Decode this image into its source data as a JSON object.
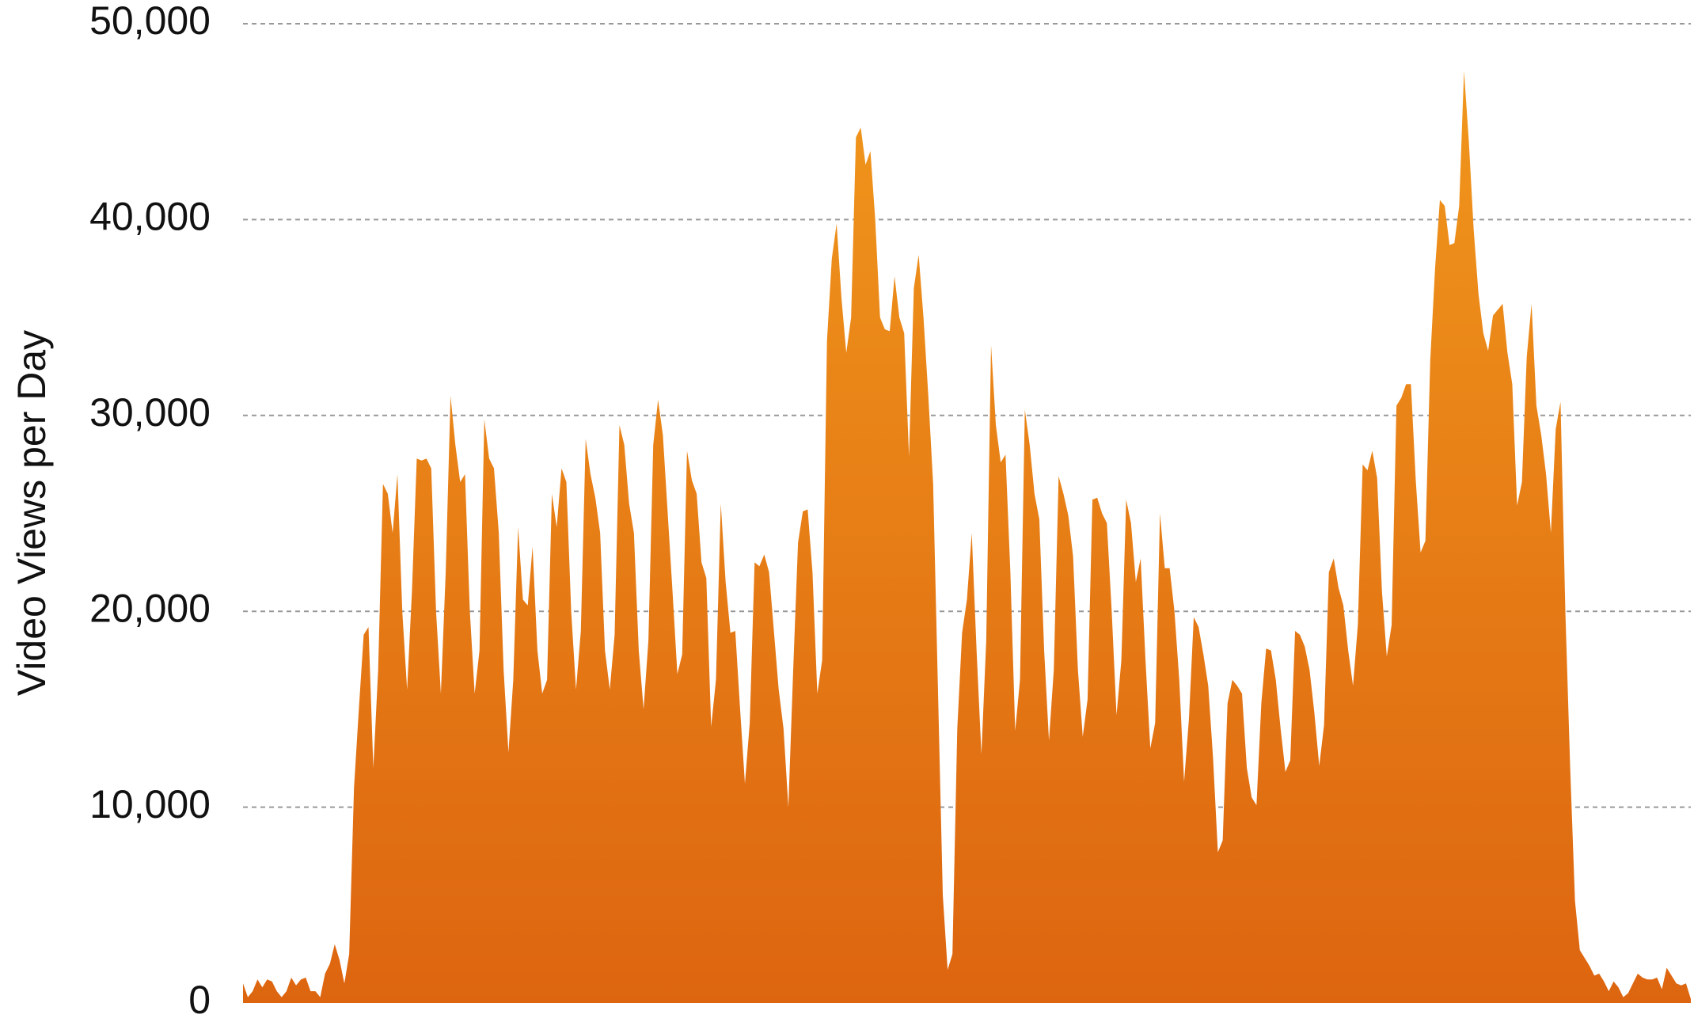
{
  "chart_data": {
    "type": "area",
    "y_label": "Video Views per Day",
    "ylim": [
      0,
      50000
    ],
    "yticks": [
      0,
      {
        "value": 10000,
        "label": "10,000"
      },
      {
        "value": 20000,
        "label": "20,000"
      },
      {
        "value": 30000,
        "label": "30,000"
      },
      {
        "value": 40000,
        "label": "40,000"
      },
      {
        "value": 50000,
        "label": "50,000"
      }
    ],
    "grid": true,
    "colors": [
      "#f0961c",
      "#dd6510"
    ],
    "values": [
      1000,
      300,
      600,
      1200,
      800,
      1200,
      1100,
      600,
      300,
      600,
      1300,
      900,
      1200,
      1300,
      600,
      600,
      300,
      1500,
      2000,
      3000,
      2200,
      1000,
      2500,
      11000,
      15000,
      18800,
      19200,
      12000,
      17000,
      26500,
      26000,
      24000,
      27000,
      20000,
      16000,
      21000,
      27800,
      27700,
      27800,
      27300,
      20000,
      15800,
      22000,
      31000,
      28500,
      26600,
      27000,
      20000,
      15800,
      18000,
      29800,
      27800,
      27300,
      24000,
      17000,
      12800,
      16500,
      24300,
      20600,
      20300,
      23300,
      18000,
      15800,
      16500,
      26000,
      24300,
      27300,
      26600,
      20000,
      16000,
      19000,
      28800,
      27000,
      25800,
      24000,
      18000,
      16000,
      18800,
      29500,
      28500,
      25500,
      24000,
      18000,
      15000,
      18500,
      28500,
      30800,
      29000,
      25000,
      21000,
      16800,
      17800,
      28200,
      26700,
      26000,
      22500,
      21700,
      14100,
      16500,
      25500,
      21500,
      18900,
      19000,
      15000,
      11200,
      14300,
      22500,
      22300,
      22900,
      22000,
      19000,
      16000,
      14000,
      10000,
      17000,
      23500,
      25100,
      25200,
      22000,
      15800,
      17500,
      33800,
      38000,
      39800,
      36000,
      33200,
      35000,
      44200,
      44700,
      42800,
      43500,
      40000,
      35000,
      34400,
      34300,
      37100,
      35000,
      34200,
      27900,
      36500,
      38200,
      35000,
      31000,
      26500,
      16000,
      5500,
      1700,
      2500,
      14000,
      18900,
      20600,
      24000,
      18000,
      12700,
      18500,
      33600,
      29500,
      27600,
      28000,
      22000,
      13900,
      16500,
      30300,
      28500,
      26000,
      24700,
      18000,
      13400,
      17000,
      26900,
      26000,
      24900,
      22800,
      17000,
      13600,
      15500,
      25700,
      25800,
      25000,
      24500,
      20000,
      14700,
      17500,
      25700,
      24500,
      21500,
      22700,
      17500,
      13000,
      14300,
      25000,
      22200,
      22200,
      20000,
      16500,
      11300,
      14500,
      19700,
      19200,
      17800,
      16200,
      12500,
      7700,
      8300,
      15300,
      16500,
      16200,
      15800,
      12000,
      10500,
      10100,
      15300,
      18100,
      18000,
      16500,
      14000,
      11800,
      12400,
      19000,
      18800,
      18200,
      17000,
      14800,
      12100,
      14200,
      22000,
      22700,
      21200,
      20300,
      18000,
      16200,
      19300,
      27500,
      27200,
      28200,
      26800,
      21000,
      17700,
      19300,
      30500,
      30900,
      31600,
      31600,
      26700,
      23000,
      23600,
      32800,
      37500,
      41000,
      40700,
      38700,
      38800,
      40700,
      47600,
      44000,
      39500,
      36200,
      34200,
      33300,
      35100,
      35400,
      35700,
      33200,
      31600,
      25400,
      26600,
      33000,
      35700,
      30500,
      29000,
      27000,
      24000,
      29300,
      30700,
      20000,
      12000,
      5200,
      2700,
      2300,
      1900,
      1400,
      1500,
      1100,
      600,
      1100,
      800,
      300,
      500,
      1000,
      1500,
      1300,
      1200,
      1200,
      1300,
      700,
      1800,
      1400,
      1000,
      900,
      1000,
      200
    ]
  }
}
